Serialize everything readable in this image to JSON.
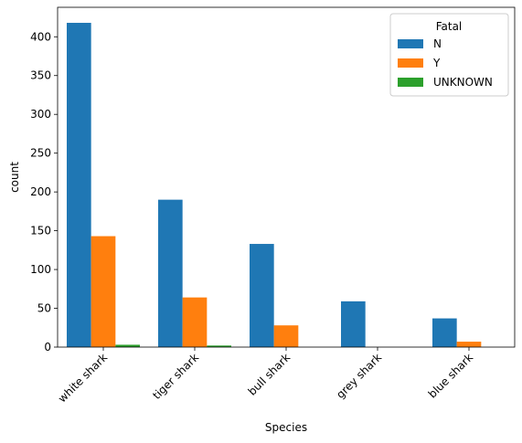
{
  "chart_data": {
    "type": "bar",
    "title": "",
    "xlabel": "Species",
    "ylabel": "count",
    "categories": [
      "white shark",
      "tiger shark",
      "bull shark",
      "grey shark",
      "blue shark"
    ],
    "series": [
      {
        "name": "N",
        "color": "#1f77b4",
        "values": [
          418,
          190,
          133,
          59,
          37
        ]
      },
      {
        "name": "Y",
        "color": "#ff7f0e",
        "values": [
          143,
          64,
          28,
          0,
          7
        ]
      },
      {
        "name": "UNKNOWN",
        "color": "#2ca02c",
        "values": [
          3,
          2,
          0,
          0,
          0
        ]
      }
    ],
    "ylim": [
      0,
      438
    ],
    "yticks": [
      0,
      50,
      100,
      150,
      200,
      250,
      300,
      350,
      400
    ],
    "legend": {
      "title": "Fatal",
      "placement": "top-right"
    },
    "grid": false
  }
}
